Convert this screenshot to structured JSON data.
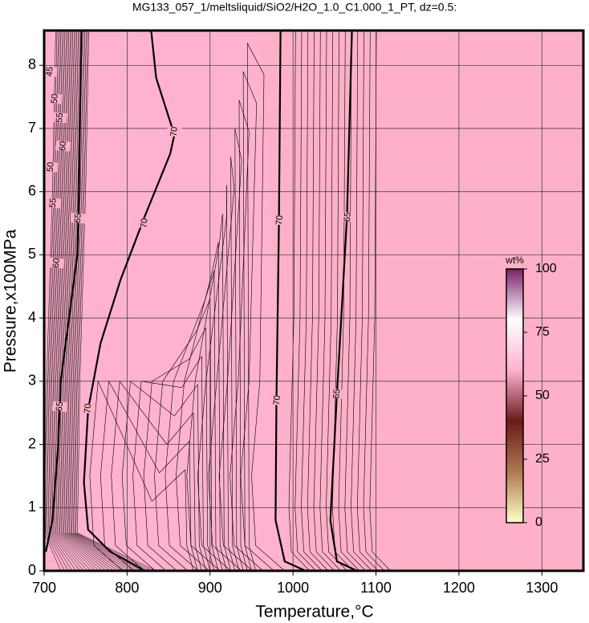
{
  "chart_data": {
    "type": "contour",
    "title": "MG133_057_1/meltsliquid/SiO2/H2O_1.0_C1.000_1_PT, dz=0.5:",
    "x_label": "Temperature,°C",
    "y_label": "Pressure,x100MPa",
    "xlim": [
      700,
      1350
    ],
    "ylim": [
      0,
      8.55
    ],
    "xticks": [
      700,
      800,
      900,
      1000,
      1100,
      1200,
      1300
    ],
    "yticks": [
      0,
      1,
      2,
      3,
      4,
      5,
      6,
      7,
      8
    ],
    "grid": true,
    "background_color": "#fdb0c8",
    "contours": [
      {
        "label": "65",
        "x": [
          702,
          710,
          717,
          720,
          730,
          740,
          742,
          743,
          745
        ],
        "y": [
          0.3,
          0.8,
          2,
          3,
          4,
          5,
          6,
          7,
          8.55
        ]
      },
      {
        "label": "70",
        "x": [
          821,
          780,
          753,
          748,
          753,
          768,
          792,
          821,
          852,
          857,
          835,
          829
        ],
        "y": [
          0,
          0.3,
          0.65,
          1.4,
          2.55,
          3.6,
          4.6,
          5.6,
          6.6,
          6.9,
          7.8,
          8.55
        ]
      },
      {
        "label": "70",
        "x": [
          1015,
          990,
          979,
          980,
          983,
          985
        ],
        "y": [
          0,
          0.15,
          0.8,
          2.7,
          5.5,
          8.55
        ]
      },
      {
        "label": "65",
        "x": [
          1077,
          1053,
          1045,
          1053,
          1065,
          1071
        ],
        "y": [
          0,
          0.15,
          0.8,
          2.8,
          5.6,
          8.55
        ]
      }
    ],
    "contour_labels": [
      {
        "text": "65",
        "x": 719,
        "y": 2.6
      },
      {
        "text": "70",
        "x": 753,
        "y": 2.57
      },
      {
        "text": "65",
        "x": 741,
        "y": 5.58
      },
      {
        "text": "70",
        "x": 821,
        "y": 5.5
      },
      {
        "text": "70",
        "x": 857,
        "y": 6.95
      },
      {
        "text": "70",
        "x": 981,
        "y": 2.7
      },
      {
        "text": "70",
        "x": 984,
        "y": 5.55
      },
      {
        "text": "65",
        "x": 1053,
        "y": 2.8
      },
      {
        "text": "65",
        "x": 1066,
        "y": 5.6
      },
      {
        "text": "45",
        "x": 707,
        "y": 7.9
      },
      {
        "text": "50",
        "x": 713,
        "y": 7.47
      },
      {
        "text": "55",
        "x": 719,
        "y": 7.17
      },
      {
        "text": "60",
        "x": 723,
        "y": 6.72
      },
      {
        "text": "50",
        "x": 708,
        "y": 6.39
      },
      {
        "text": "55",
        "x": 711,
        "y": 5.82
      },
      {
        "text": "60",
        "x": 715,
        "y": 4.87
      }
    ],
    "colorbar": {
      "label": "wt%",
      "lim": [
        0,
        100
      ],
      "ticks": [
        0,
        25,
        50,
        75,
        100
      ],
      "colors": [
        "#ffffc8",
        "#b07850",
        "#6a1a1a",
        "#ffb0d0",
        "#ffffff",
        "#7a206a"
      ]
    }
  }
}
